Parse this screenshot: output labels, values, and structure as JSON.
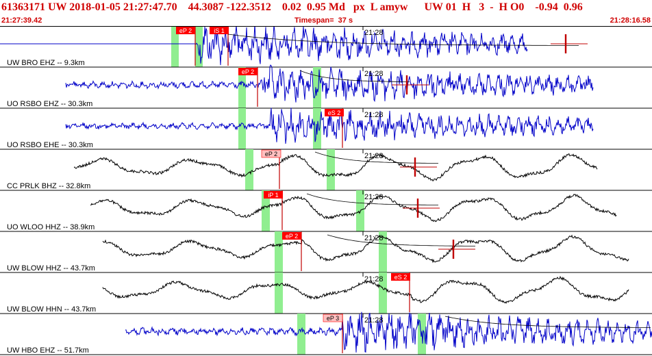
{
  "header": {
    "title": "61363171 UW 2018-01-05 21:27:47.70    44.3087 -122.3512    0.02  0.95 Md   px  L amyw      UW 01  H   3  -  H O0    -0.94  0.96",
    "start_time": "21:27:39.42",
    "timespan": "Timespan=  37 s",
    "end_time": "21:28:16.58"
  },
  "colors": {
    "header_text": "#d00000",
    "trace_blue": "#0000c8",
    "trace_black": "#000000",
    "pick_box": "#ff0000",
    "pick_box_light": "#ffc0c0",
    "window_green": "#90ee90",
    "pick_line": "#c00000"
  },
  "traces": [
    {
      "label": "UW BRO EHZ -- 9.3km",
      "time_label": "21:28",
      "color": "blue",
      "picks": [
        {
          "label": "eP 2",
          "style": "solid"
        },
        {
          "label": "iS 1",
          "style": "solid"
        }
      ]
    },
    {
      "label": "UO RSBO EHZ -- 30.3km",
      "time_label": "21:28",
      "color": "blue",
      "picks": [
        {
          "label": "eP 2",
          "style": "solid"
        }
      ]
    },
    {
      "label": "UO RSBO EHE -- 30.3km",
      "time_label": "21:28",
      "color": "blue",
      "picks": [
        {
          "label": "eS 2",
          "style": "solid"
        }
      ]
    },
    {
      "label": "CC PRLK BHZ -- 32.8km",
      "time_label": "21:28",
      "color": "black",
      "picks": [
        {
          "label": "eP 2",
          "style": "light"
        }
      ]
    },
    {
      "label": "UO WLOO HHZ -- 38.9km",
      "time_label": "21:28",
      "color": "black",
      "picks": [
        {
          "label": "iP 1",
          "style": "solid"
        }
      ]
    },
    {
      "label": "UW BLOW HHZ -- 43.7km",
      "time_label": "21:28",
      "color": "black",
      "picks": [
        {
          "label": "eP 2",
          "style": "solid"
        }
      ]
    },
    {
      "label": "UW BLOW HHN -- 43.7km",
      "time_label": "21:28",
      "color": "black",
      "picks": [
        {
          "label": "eS 2",
          "style": "solid"
        }
      ]
    },
    {
      "label": "UW HBO EHZ -- 51.7km",
      "time_label": "21:28",
      "color": "blue",
      "picks": [
        {
          "label": "eP 3",
          "style": "light"
        }
      ]
    }
  ]
}
